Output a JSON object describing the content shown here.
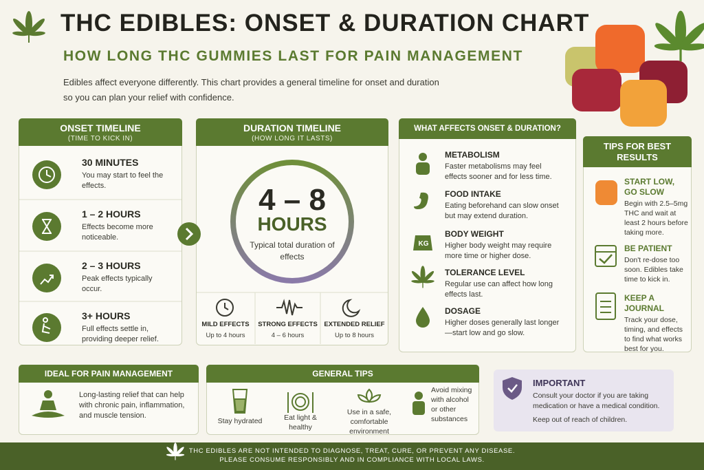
{
  "header": {
    "title": "THC EDIBLES: ONSET & DURATION CHART",
    "subtitle": "HOW LONG THC GUMMIES LAST FOR PAIN MANAGEMENT",
    "intro": [
      "Edibles affect everyone differently. This chart provides a general timeline for onset and duration",
      "so you can plan your relief with confidence."
    ]
  },
  "onset": {
    "title": "ONSET TIMELINE",
    "subtitle": "(TIME TO KICK IN)",
    "items": [
      {
        "time": "30 MINUTES",
        "text": "You may start to feel the effects."
      },
      {
        "time": "1 – 2 HOURS",
        "text": "Effects become more noticeable."
      },
      {
        "time": "2 – 3 HOURS",
        "text": "Peak effects typically occur."
      },
      {
        "time": "3+ HOURS",
        "text": "Full effects settle in, providing deeper relief."
      }
    ]
  },
  "duration": {
    "title": "DURATION TIMELINE",
    "subtitle": "(HOW LONG IT LASTS)",
    "range": "4 – 8",
    "unit": "HOURS",
    "caption": "Typical total duration of effects",
    "levels": [
      {
        "name": "MILD EFFECTS",
        "detail": "Up to 4 hours"
      },
      {
        "name": "STRONG EFFECTS",
        "detail": "4 – 6 hours"
      },
      {
        "name": "EXTENDED RELIEF",
        "detail": "Up to 8 hours"
      }
    ]
  },
  "factors": {
    "title": "WHAT AFFECTS ONSET & DURATION?",
    "weight_icon": "KG",
    "items": [
      {
        "name": "METABOLISM",
        "text": "Faster metabolisms may feel effects sooner and for less time."
      },
      {
        "name": "FOOD INTAKE",
        "text": "Eating beforehand can slow onset but may extend duration."
      },
      {
        "name": "BODY WEIGHT",
        "text": "Higher body weight may require more time or higher dose."
      },
      {
        "name": "TOLERANCE LEVEL",
        "text": "Regular use can affect how long effects last."
      },
      {
        "name": "DOSAGE",
        "text": "Higher doses generally last longer—start low and go slow."
      }
    ]
  },
  "tips": {
    "title": "TIPS FOR BEST RESULTS",
    "items": [
      {
        "name": "START LOW, GO SLOW",
        "text": "Begin with 2.5–5mg THC and wait at least 2 hours before taking more."
      },
      {
        "name": "BE PATIENT",
        "text": "Don't re-dose too soon. Edibles take time to kick in."
      },
      {
        "name": "KEEP A JOURNAL",
        "text": "Track your dose, timing, and effects to find what works best for you."
      }
    ]
  },
  "pain": {
    "title": "IDEAL FOR PAIN MANAGEMENT",
    "text": "Long-lasting relief that can help with chronic pain, inflammation, and muscle tension."
  },
  "general": {
    "title": "GENERAL TIPS",
    "items": [
      "Stay hydrated",
      "Eat light & healthy",
      "Use in a safe, comfortable environment",
      "Avoid mixing with alcohol or other substances"
    ]
  },
  "important": {
    "title": "IMPORTANT",
    "lines": [
      "Consult your doctor if you are taking medication or have a medical condition.",
      "Keep out of reach of children."
    ]
  },
  "footer": {
    "lines": [
      "THC EDIBLES ARE NOT INTENDED TO DIAGNOSE, TREAT, CURE, OR PREVENT ANY DISEASE.",
      "PLEASE CONSUME RESPONSIBLY AND IN COMPLIANCE WITH LOCAL LAWS."
    ]
  }
}
